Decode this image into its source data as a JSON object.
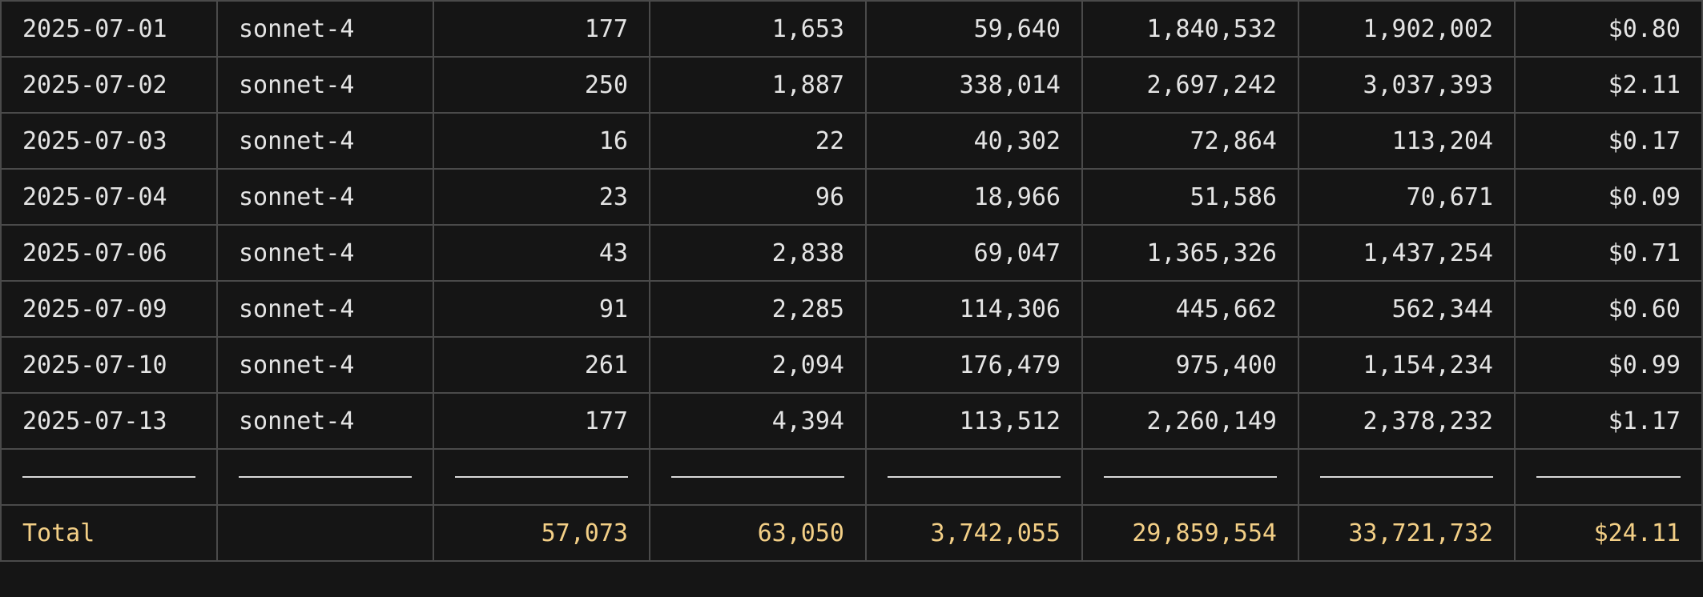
{
  "table": {
    "rows": [
      {
        "date": "2025-07-01",
        "model": "sonnet-4",
        "c1": "177",
        "c2": "1,653",
        "c3": "59,640",
        "c4": "1,840,532",
        "c5": "1,902,002",
        "cost": "$0.80"
      },
      {
        "date": "2025-07-02",
        "model": "sonnet-4",
        "c1": "250",
        "c2": "1,887",
        "c3": "338,014",
        "c4": "2,697,242",
        "c5": "3,037,393",
        "cost": "$2.11"
      },
      {
        "date": "2025-07-03",
        "model": "sonnet-4",
        "c1": "16",
        "c2": "22",
        "c3": "40,302",
        "c4": "72,864",
        "c5": "113,204",
        "cost": "$0.17"
      },
      {
        "date": "2025-07-04",
        "model": "sonnet-4",
        "c1": "23",
        "c2": "96",
        "c3": "18,966",
        "c4": "51,586",
        "c5": "70,671",
        "cost": "$0.09"
      },
      {
        "date": "2025-07-06",
        "model": "sonnet-4",
        "c1": "43",
        "c2": "2,838",
        "c3": "69,047",
        "c4": "1,365,326",
        "c5": "1,437,254",
        "cost": "$0.71"
      },
      {
        "date": "2025-07-09",
        "model": "sonnet-4",
        "c1": "91",
        "c2": "2,285",
        "c3": "114,306",
        "c4": "445,662",
        "c5": "562,344",
        "cost": "$0.60"
      },
      {
        "date": "2025-07-10",
        "model": "sonnet-4",
        "c1": "261",
        "c2": "2,094",
        "c3": "176,479",
        "c4": "975,400",
        "c5": "1,154,234",
        "cost": "$0.99"
      },
      {
        "date": "2025-07-13",
        "model": "sonnet-4",
        "c1": "177",
        "c2": "4,394",
        "c3": "113,512",
        "c4": "2,260,149",
        "c5": "2,378,232",
        "cost": "$1.17"
      }
    ],
    "total": {
      "label": "Total",
      "model": "",
      "c1": "57,073",
      "c2": "63,050",
      "c3": "3,742,055",
      "c4": "29,859,554",
      "c5": "33,721,732",
      "cost": "$24.11"
    }
  },
  "colors": {
    "background": "#151515",
    "border": "#4a4a4a",
    "text": "#e4e4e4",
    "total_text": "#f3cf86"
  }
}
